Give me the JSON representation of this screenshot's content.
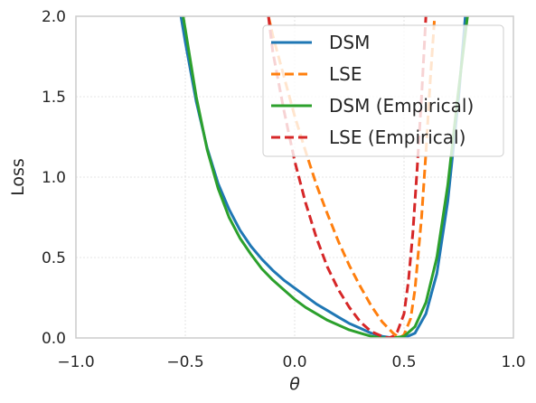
{
  "chart_data": {
    "type": "line",
    "title": "",
    "xlabel": "θ",
    "ylabel": "Loss",
    "xlim": [
      -1.0,
      1.0
    ],
    "ylim": [
      0.0,
      2.0
    ],
    "xticks": [
      -1.0,
      -0.5,
      0.0,
      0.5,
      1.0
    ],
    "xtick_labels": [
      "−1.0",
      "−0.5",
      "0.0",
      "0.5",
      "1.0"
    ],
    "yticks": [
      0.0,
      0.5,
      1.0,
      1.5,
      2.0
    ],
    "ytick_labels": [
      "0.0",
      "0.5",
      "1.0",
      "1.5",
      "2.0"
    ],
    "grid": true,
    "legend_position": "top-right",
    "series": [
      {
        "name": "DSM",
        "color": "#1f77b4",
        "dash": "solid",
        "x": [
          -0.52,
          -0.5,
          -0.45,
          -0.4,
          -0.35,
          -0.3,
          -0.25,
          -0.2,
          -0.15,
          -0.1,
          -0.05,
          0.0,
          0.05,
          0.1,
          0.15,
          0.2,
          0.25,
          0.3,
          0.35,
          0.4,
          0.45,
          0.5,
          0.55,
          0.6,
          0.65,
          0.7,
          0.75,
          0.78
        ],
        "y": [
          2.0,
          1.84,
          1.47,
          1.18,
          0.96,
          0.8,
          0.67,
          0.57,
          0.49,
          0.42,
          0.36,
          0.31,
          0.26,
          0.21,
          0.17,
          0.13,
          0.09,
          0.06,
          0.03,
          0.01,
          0.0,
          0.0,
          0.03,
          0.15,
          0.4,
          0.85,
          1.5,
          2.0
        ]
      },
      {
        "name": "LSE",
        "color": "#ff7f0e",
        "dash": "dashed",
        "x": [
          -0.12,
          -0.1,
          -0.05,
          0.0,
          0.05,
          0.1,
          0.15,
          0.2,
          0.25,
          0.3,
          0.35,
          0.4,
          0.45,
          0.48,
          0.5,
          0.53,
          0.55,
          0.58,
          0.6,
          0.62,
          0.64
        ],
        "y": [
          2.0,
          1.88,
          1.63,
          1.38,
          1.16,
          0.95,
          0.77,
          0.6,
          0.45,
          0.32,
          0.2,
          0.1,
          0.03,
          0.0,
          0.02,
          0.12,
          0.3,
          0.75,
          1.15,
          1.6,
          2.0
        ]
      },
      {
        "name": "DSM (Empirical)",
        "color": "#2ca02c",
        "dash": "solid",
        "x": [
          -0.51,
          -0.5,
          -0.45,
          -0.4,
          -0.35,
          -0.3,
          -0.25,
          -0.2,
          -0.15,
          -0.1,
          -0.05,
          0.0,
          0.05,
          0.1,
          0.15,
          0.2,
          0.25,
          0.3,
          0.35,
          0.4,
          0.45,
          0.5,
          0.55,
          0.6,
          0.65,
          0.7,
          0.75,
          0.79
        ],
        "y": [
          2.0,
          1.92,
          1.5,
          1.17,
          0.93,
          0.75,
          0.62,
          0.52,
          0.43,
          0.36,
          0.3,
          0.24,
          0.19,
          0.15,
          0.11,
          0.08,
          0.05,
          0.03,
          0.01,
          0.0,
          0.0,
          0.01,
          0.07,
          0.22,
          0.5,
          0.95,
          1.55,
          2.0
        ]
      },
      {
        "name": "LSE (Empirical)",
        "color": "#d62728",
        "dash": "dashed",
        "x": [
          -0.12,
          -0.1,
          -0.05,
          0.0,
          0.05,
          0.1,
          0.15,
          0.2,
          0.25,
          0.3,
          0.35,
          0.4,
          0.43,
          0.45,
          0.47,
          0.5,
          0.52,
          0.54,
          0.56,
          0.58,
          0.6
        ],
        "y": [
          2.0,
          1.78,
          1.42,
          1.1,
          0.84,
          0.62,
          0.44,
          0.3,
          0.19,
          0.1,
          0.04,
          0.01,
          0.0,
          0.01,
          0.04,
          0.15,
          0.35,
          0.65,
          1.05,
          1.5,
          2.0
        ]
      }
    ]
  }
}
